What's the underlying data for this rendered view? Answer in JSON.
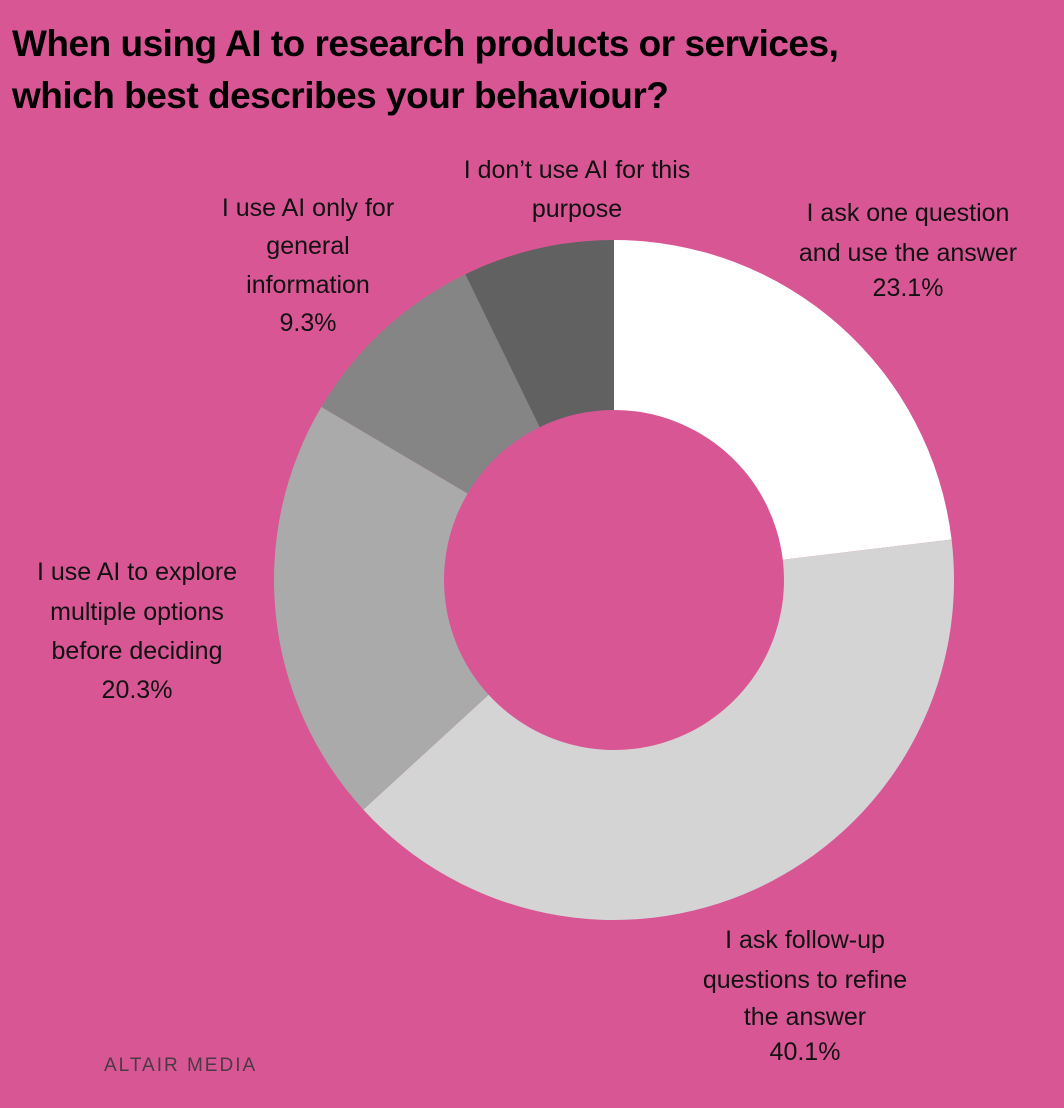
{
  "chart_data": {
    "type": "pie",
    "donut": true,
    "title_lines": [
      "When using AI to research products or services,",
      "which best describes your behaviour?"
    ],
    "start": "12 o'clock",
    "direction": "clockwise",
    "slices": [
      {
        "label_lines": [
          "I ask one question",
          "and use the answer"
        ],
        "value": 23.1,
        "value_label": "23.1%",
        "color": "#ffffff"
      },
      {
        "label_lines": [
          "I ask follow-up",
          "questions to refine",
          "the answer"
        ],
        "value": 40.1,
        "value_label": "40.1%",
        "color": "#d4d4d4"
      },
      {
        "label_lines": [
          "I use AI to explore",
          "multiple options",
          "before deciding"
        ],
        "value": 20.3,
        "value_label": "20.3%",
        "color": "#aaaaaa"
      },
      {
        "label_lines": [
          "I use AI only for",
          "general",
          "information"
        ],
        "value": 9.3,
        "value_label": "9.3%",
        "color": "#858585"
      },
      {
        "label_lines": [
          "I don’t use AI for this",
          "purpose"
        ],
        "value": 7.2,
        "color": "#616161"
      }
    ]
  },
  "background_color": "#d95695",
  "brand": "ALTAIR MEDIA"
}
